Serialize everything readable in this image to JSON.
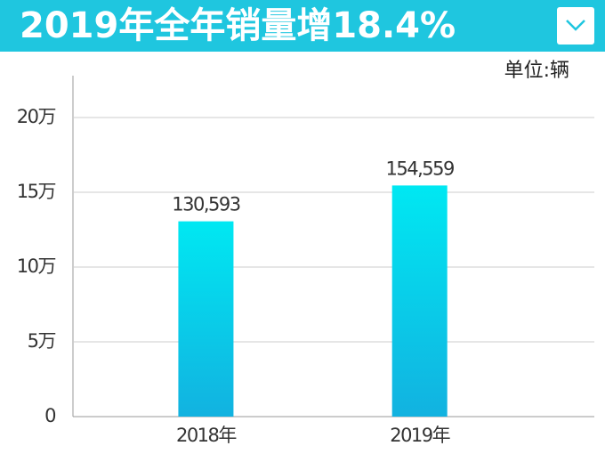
{
  "chart_data": {
    "type": "bar",
    "title": "2019年全年销量增18.4%",
    "unit": "单位:辆",
    "categories": [
      "2018年",
      "2019年"
    ],
    "values": [
      130593,
      154559
    ],
    "value_labels": [
      "130,593",
      "154,559"
    ],
    "color": "#00e8f2",
    "ylim": [
      0,
      228000
    ],
    "yticks": [
      0,
      {
        "value": 50000,
        "label": "5万"
      },
      {
        "value": 100000,
        "label": "10万"
      },
      {
        "value": 150000,
        "label": "15万"
      },
      {
        "value": 200000,
        "label": "20万"
      }
    ],
    "grid": true
  }
}
